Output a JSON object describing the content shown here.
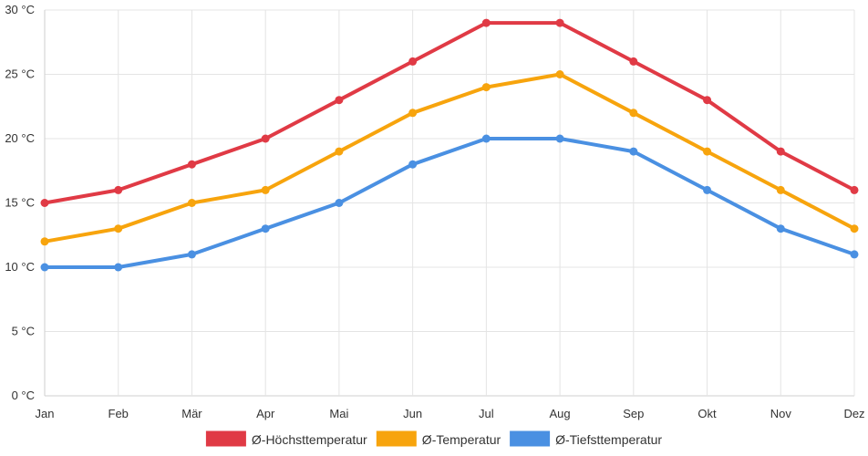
{
  "chart_data": {
    "type": "line",
    "title": "",
    "xlabel": "",
    "ylabel": "",
    "categories": [
      "Jan",
      "Feb",
      "Mär",
      "Apr",
      "Mai",
      "Jun",
      "Jul",
      "Aug",
      "Sep",
      "Okt",
      "Nov",
      "Dez"
    ],
    "ylim": [
      0,
      30
    ],
    "yticks": [
      0,
      5,
      10,
      15,
      20,
      25,
      30
    ],
    "y_unit": " °C",
    "grid": true,
    "legend_position": "bottom-center",
    "series": [
      {
        "name": "Ø-Höchsttemperatur",
        "color": "#e03a45",
        "values": [
          15,
          16,
          18,
          20,
          23,
          26,
          29,
          29,
          26,
          23,
          19,
          16
        ]
      },
      {
        "name": "Ø-Temperatur",
        "color": "#f7a40d",
        "values": [
          12,
          13,
          15,
          16,
          19,
          22,
          24,
          25,
          22,
          19,
          16,
          13
        ]
      },
      {
        "name": "Ø-Tiefsttemperatur",
        "color": "#4a90e2",
        "values": [
          10,
          10,
          11,
          13,
          15,
          18,
          20,
          20,
          19,
          16,
          13,
          11
        ]
      }
    ]
  }
}
